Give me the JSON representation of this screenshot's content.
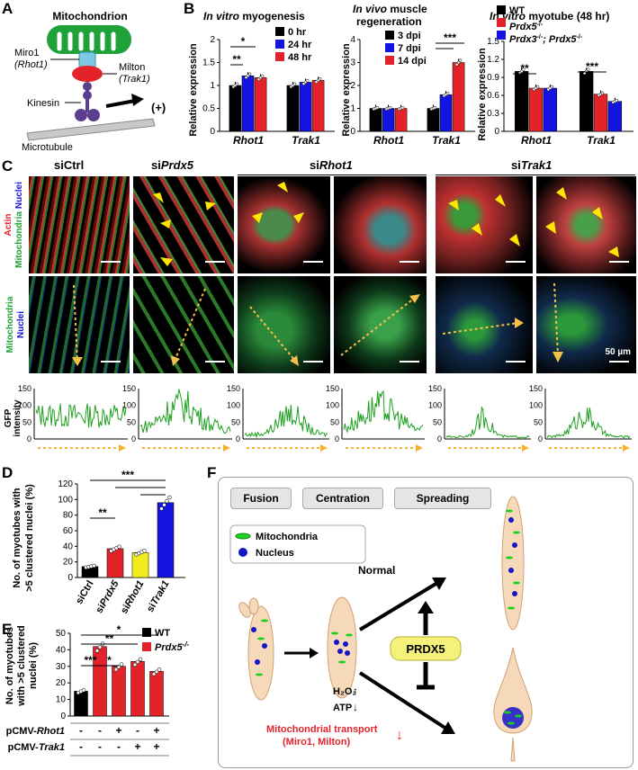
{
  "panel_letters": {
    "a": "A",
    "b": "B",
    "c": "C",
    "d": "D",
    "e": "E",
    "f": "F"
  },
  "panelA": {
    "mitochondrion": "Mitochondrion",
    "miro1": "Miro1",
    "rhot1": "(Rhot1)",
    "milton": "Milton",
    "trak1": "(Trak1)",
    "kinesin": "Kinesin",
    "plus": "(+)",
    "microtubule": "Microtubule",
    "colors": {
      "mito": "#1fa23a",
      "miro": "#7ec8e3",
      "milton": "#e2242a",
      "kinesin": "#5b3f8f",
      "tubule": "#b8b8b8"
    }
  },
  "panelB": {
    "chart1": {
      "title_italic": "In vitro",
      "title_rest": " myogenesis",
      "ylabel": "Relative expression",
      "yticks": [
        "0",
        "0.5",
        "1",
        "1.5",
        "2"
      ],
      "sig": [
        "*",
        "**"
      ]
    },
    "chart2": {
      "title_italic": "In vivo",
      "title_rest": " muscle",
      "title2": "regeneration",
      "ylabel": "Relative expression",
      "yticks": [
        "0",
        "1",
        "2",
        "3",
        "4"
      ],
      "sig": [
        "***"
      ]
    },
    "chart3": {
      "title_italic": "In vitro",
      "title_rest": " myotube (48 hr)",
      "ylabel": "Relative expression",
      "yticks": [
        "0",
        "0.3",
        "0.6",
        "0.9",
        "1.2",
        "1.5"
      ],
      "sig": [
        "**",
        "***"
      ]
    }
  },
  "chart_data": [
    {
      "type": "bar",
      "panel": "B-1",
      "categories": [
        "Rhot1",
        "Trak1"
      ],
      "series": [
        {
          "name": "0 hr",
          "color": "#000000",
          "values": [
            1.0,
            1.0
          ]
        },
        {
          "name": "24 hr",
          "color": "#1414e0",
          "values": [
            1.21,
            1.07
          ]
        },
        {
          "name": "48 hr",
          "color": "#e2242a",
          "values": [
            1.17,
            1.11
          ]
        }
      ],
      "ylim": [
        0,
        2
      ],
      "ylabel": "Relative expression"
    },
    {
      "type": "bar",
      "panel": "B-2",
      "categories": [
        "Rhot1",
        "Trak1"
      ],
      "series": [
        {
          "name": "3 dpi",
          "color": "#000000",
          "values": [
            1.0,
            1.0
          ]
        },
        {
          "name": "7 dpi",
          "color": "#1414e0",
          "values": [
            1.0,
            1.6
          ]
        },
        {
          "name": "14 dpi",
          "color": "#e2242a",
          "values": [
            1.0,
            3.0
          ]
        }
      ],
      "ylim": [
        0,
        4
      ],
      "ylabel": "Relative expression"
    },
    {
      "type": "bar",
      "panel": "B-3",
      "categories": [
        "Rhot1",
        "Trak1"
      ],
      "series": [
        {
          "name": "WT",
          "color": "#000000",
          "values": [
            1.0,
            1.0
          ]
        },
        {
          "name": "Prdx5-/-",
          "color": "#e2242a",
          "values": [
            0.72,
            0.62
          ]
        },
        {
          "name": "Prdx3-/-; Prdx5-/-",
          "color": "#1414e0",
          "values": [
            0.72,
            0.5
          ]
        }
      ],
      "ylim": [
        0,
        1.5
      ],
      "ylabel": "Relative expression"
    },
    {
      "type": "bar",
      "panel": "D",
      "categories": [
        "siCtrl",
        "siPrdx5",
        "siRhot1",
        "siTrak1"
      ],
      "values": [
        14,
        37,
        32,
        96
      ],
      "colors": [
        "#000000",
        "#e2242a",
        "#f2ec1c",
        "#1414e0"
      ],
      "ylim": [
        0,
        120
      ],
      "yticks": [
        "0",
        "20",
        "40",
        "60",
        "80",
        "100",
        "120"
      ],
      "ylabel": "No. of myotubes with >5 clustered nuclei (%)",
      "sig": [
        "**",
        "***"
      ]
    },
    {
      "type": "bar",
      "panel": "E",
      "categories": [
        "1",
        "2",
        "3",
        "4",
        "5"
      ],
      "series": [
        {
          "name": "WT",
          "color": "#000000"
        },
        {
          "name": "Prdx5-/-",
          "color": "#e2242a"
        }
      ],
      "values": [
        15,
        42,
        30,
        33,
        27
      ],
      "colors": [
        "#000000",
        "#e2242a",
        "#e2242a",
        "#e2242a",
        "#e2242a"
      ],
      "ylim": [
        0,
        50
      ],
      "yticks": [
        "0",
        "10",
        "20",
        "30",
        "40",
        "50"
      ],
      "ylabel": "No. of myotubes with >5 clustered nuclei (%)",
      "sig": [
        "*",
        "**",
        "***",
        "*"
      ],
      "rows": [
        {
          "label": "pCMV-Rhot1",
          "values": [
            "-",
            "-",
            "+",
            "-",
            "+"
          ]
        },
        {
          "label": "pCMV-Trak1",
          "values": [
            "-",
            "-",
            "-",
            "+",
            "+"
          ]
        }
      ]
    }
  ],
  "panelC": {
    "cols": [
      {
        "pre": "si",
        "gene": "Ctrl"
      },
      {
        "pre": "si",
        "gene": "Prdx5"
      },
      {
        "pre": "si",
        "gene": "Rhot1"
      },
      {
        "pre": "si",
        "gene": "Trak1"
      }
    ],
    "row1_label_actin": "Actin",
    "row1_label_mito": "Mitochondria",
    "row1_label_nuclei": "Nuclei",
    "row2_label_mito": "Mitochondria",
    "row2_label_nuclei": "Nuclei",
    "scale": "50 µm",
    "gfp_ylabel1": "GFP",
    "gfp_ylabel2": "intensity",
    "gfp_yticks": [
      "0",
      "50",
      "100",
      "150"
    ]
  },
  "panelD": {
    "xlabels": [
      {
        "pre": "si",
        "gene": "Ctrl"
      },
      {
        "pre": "si",
        "gene": "Prdx5"
      },
      {
        "pre": "si",
        "gene": "Rhot1"
      },
      {
        "pre": "si",
        "gene": "Trak1"
      }
    ]
  },
  "panelE": {
    "legend_wt": "WT",
    "legend_ko": "Prdx5",
    "legend_ko_sup": "-/-"
  },
  "panelF": {
    "fusion": "Fusion",
    "centration": "Centration",
    "spreading": "Spreading",
    "legend_mito": "Mitochondria",
    "legend_nucleus": "Nucleus",
    "normal": "Normal",
    "prdx5": "PRDX5",
    "h2o2": "H₂O₂",
    "atp": "ATP",
    "transport1": "Mitochondrial transport",
    "transport2": "(Miro1, Milton)"
  }
}
